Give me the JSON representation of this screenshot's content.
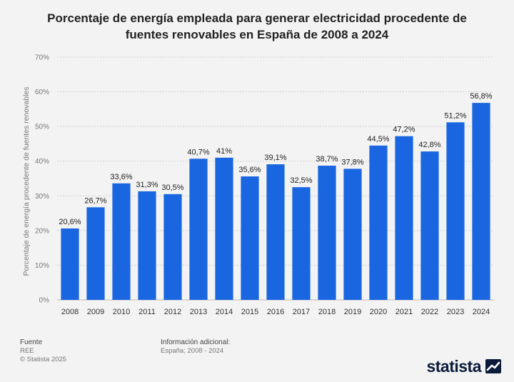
{
  "header": {
    "title": "Porcentaje de energía empleada para generar electricidad procedente de fuentes renovables en España de 2008 a 2024"
  },
  "chart_data": {
    "type": "bar",
    "title": "Porcentaje de energía empleada para generar electricidad procedente de fuentes renovables en España de 2008 a 2024",
    "xlabel": "",
    "ylabel": "Porcentaje de energía procedente de fuentes renovables",
    "categories": [
      "2008",
      "2009",
      "2010",
      "2011",
      "2012",
      "2013",
      "2014",
      "2015",
      "2016",
      "2017",
      "2018",
      "2019",
      "2020",
      "2021",
      "2022",
      "2023",
      "2024"
    ],
    "values": [
      20.6,
      26.7,
      33.6,
      31.3,
      30.5,
      40.7,
      41,
      35.6,
      39.1,
      32.5,
      38.7,
      37.8,
      44.5,
      47.2,
      42.8,
      51.2,
      56.8
    ],
    "value_labels": [
      "20,6%",
      "26,7%",
      "33,6%",
      "31,3%",
      "30,5%",
      "40,7%",
      "41%",
      "35,6%",
      "39,1%",
      "32,5%",
      "38,7%",
      "37,8%",
      "44,5%",
      "47,2%",
      "42,8%",
      "51,2%",
      "56,8%"
    ],
    "ylim": [
      0,
      70
    ],
    "yticks": [
      0,
      10,
      20,
      30,
      40,
      50,
      60,
      70
    ],
    "ytick_labels": [
      "0%",
      "10%",
      "20%",
      "30%",
      "40%",
      "50%",
      "60%",
      "70%"
    ],
    "grid": true,
    "bar_color": "#1a66e0"
  },
  "footer": {
    "source_heading": "Fuente",
    "source": "REE",
    "copyright": "© Statista 2025",
    "info_heading": "Información adicional:",
    "info": "España; 2008 - 2024"
  },
  "brand": {
    "name": "statista"
  }
}
